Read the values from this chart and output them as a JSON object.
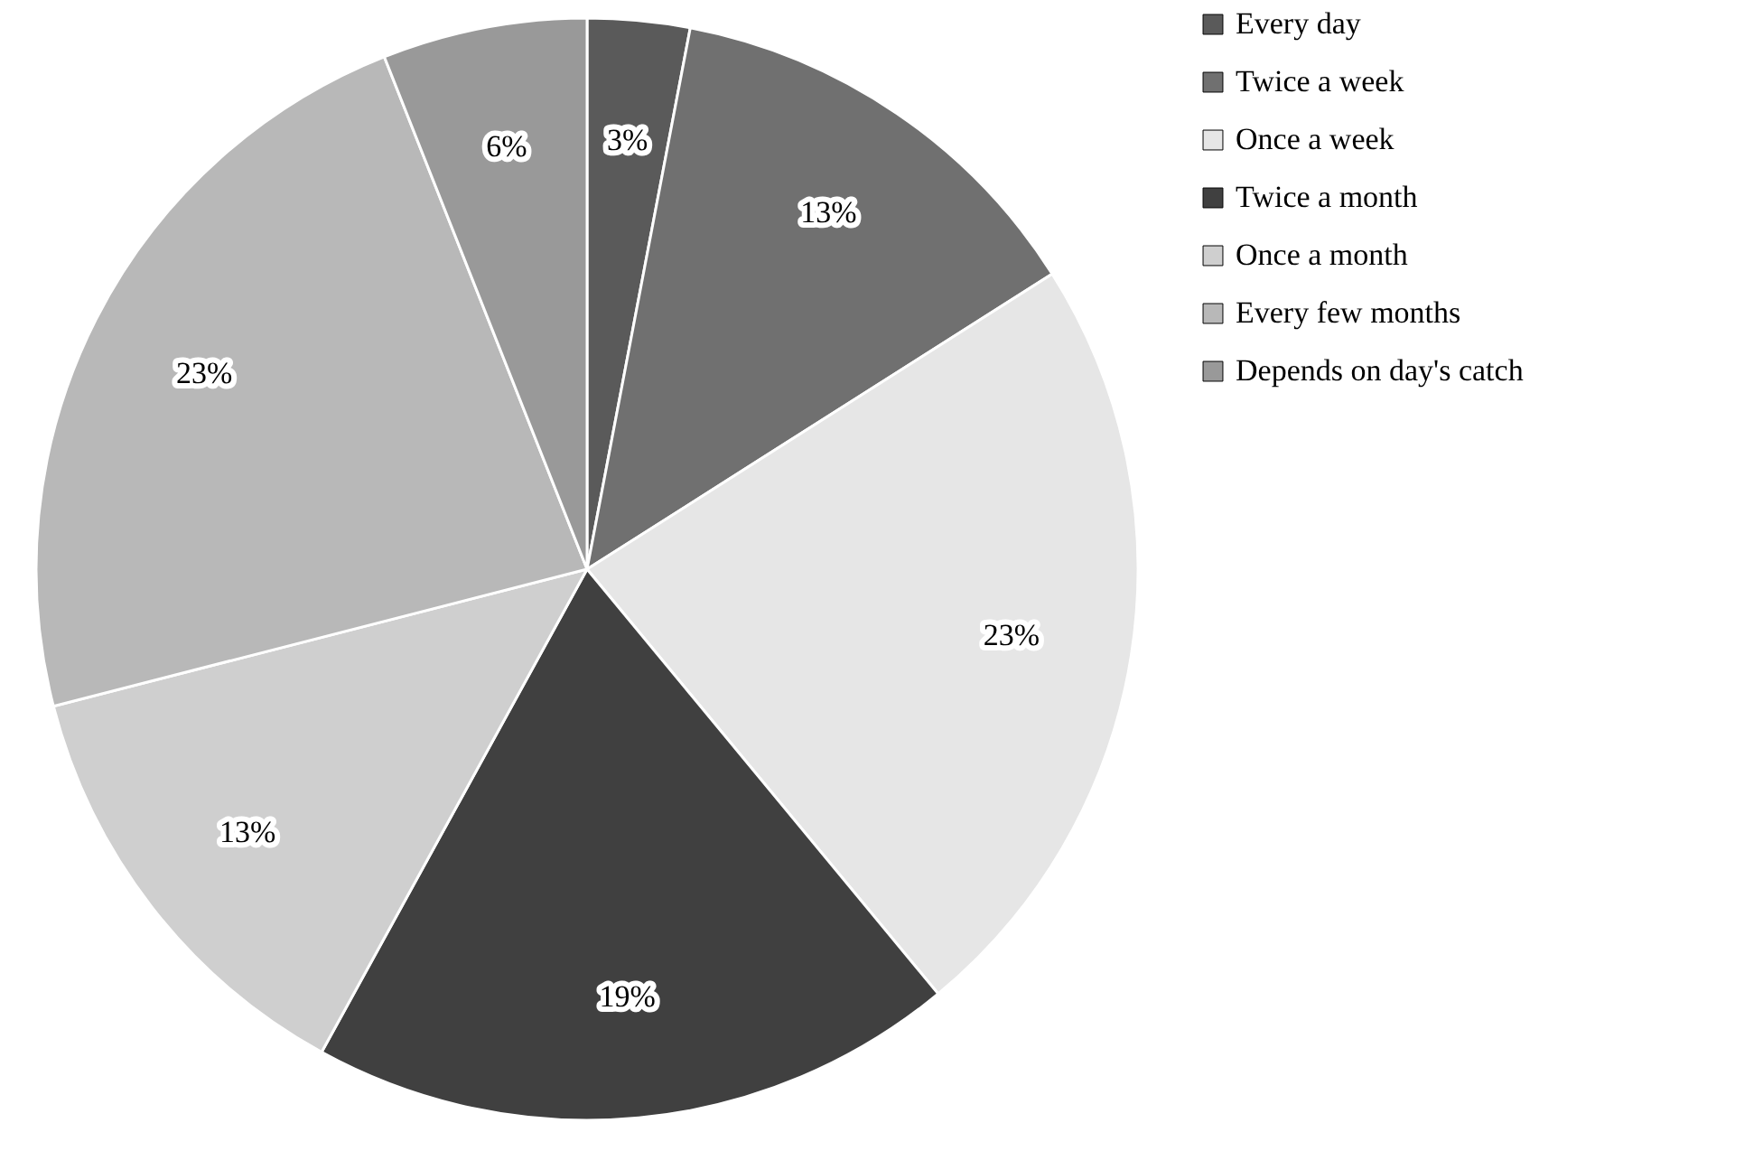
{
  "chart_data": {
    "type": "pie",
    "categories": [
      "Every day",
      "Twice a week",
      "Once a week",
      "Twice a month",
      "Once a month",
      "Every few months",
      "Depends on day's catch"
    ],
    "values": [
      3,
      13,
      23,
      19,
      13,
      23,
      6
    ],
    "value_labels": [
      "3%",
      "13%",
      "23%",
      "19%",
      "13%",
      "23%",
      "6%"
    ],
    "colors": [
      "#5a5a5a",
      "#707070",
      "#e6e6e6",
      "#404040",
      "#cfcfcf",
      "#b8b8b8",
      "#999999"
    ],
    "legend": "right"
  }
}
